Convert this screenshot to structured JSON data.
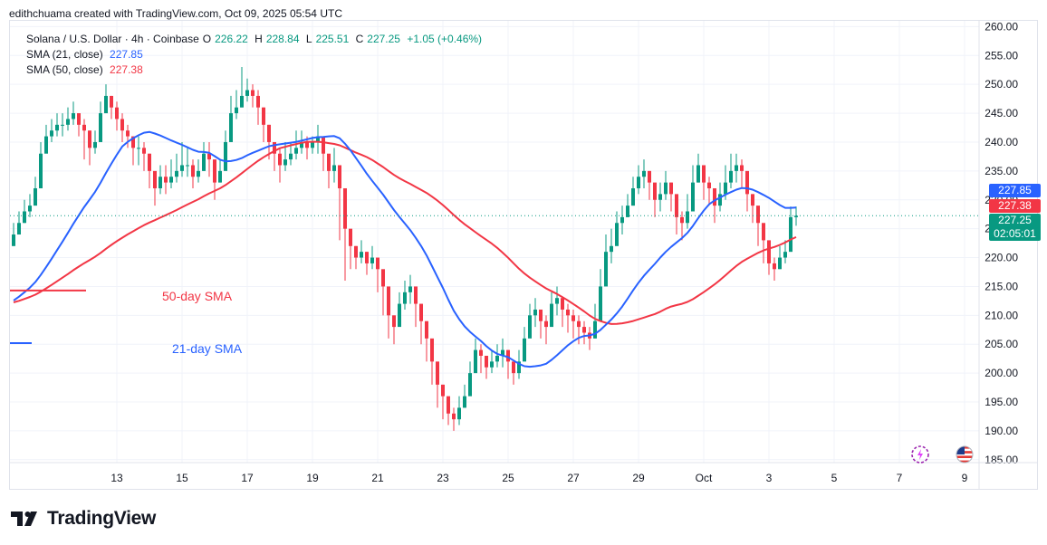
{
  "byline": "edithchuama created with TradingView.com, Oct 09, 2025 05:54 UTC",
  "legend": {
    "symbol": "Solana / U.S. Dollar · 4h · Coinbase",
    "o_label": "O",
    "o_value": "226.22",
    "h_label": "H",
    "h_value": "228.84",
    "l_label": "L",
    "l_value": "225.51",
    "c_label": "C",
    "c_value": "227.25",
    "change": "+1.05 (+0.46%)",
    "sma21_label": "SMA (21, close)",
    "sma21_value": "227.85",
    "sma50_label": "SMA (50, close)",
    "sma50_value": "227.38"
  },
  "annotations": {
    "sma50": "50-day SMA",
    "sma21": "21-day SMA"
  },
  "price_tags": {
    "sma21": "227.85",
    "sma50": "227.38",
    "last": "227.25",
    "countdown": "02:05:01"
  },
  "brand": "TradingView",
  "icons": {
    "logo": "tradingview-logo-icon",
    "replay": "replay-icon",
    "flag": "us-flag-icon"
  },
  "colors": {
    "up": "#089981",
    "down": "#f23645",
    "sma21": "#2962ff",
    "sma50": "#f23645",
    "grid": "#f0f3fa"
  },
  "chart_data": {
    "type": "candlestick",
    "timeframe": "4h",
    "y_ticks": [
      "260.00",
      "255.00",
      "250.00",
      "245.00",
      "240.00",
      "235.00",
      "230.00",
      "225.00",
      "220.00",
      "215.00",
      "210.00",
      "205.00",
      "200.00",
      "195.00",
      "190.00",
      "185.00"
    ],
    "ylim": [
      184.5,
      261
    ],
    "x_ticks": [
      {
        "label": "13",
        "bar": 19
      },
      {
        "label": "15",
        "bar": 31
      },
      {
        "label": "17",
        "bar": 43
      },
      {
        "label": "19",
        "bar": 55
      },
      {
        "label": "21",
        "bar": 67
      },
      {
        "label": "23",
        "bar": 79
      },
      {
        "label": "25",
        "bar": 91
      },
      {
        "label": "27",
        "bar": 103
      },
      {
        "label": "29",
        "bar": 115
      },
      {
        "label": "Oct",
        "bar": 127
      },
      {
        "label": "3",
        "bar": 139
      },
      {
        "label": "5",
        "bar": 151
      },
      {
        "label": "7",
        "bar": 163
      },
      {
        "label": "9",
        "bar": 175
      }
    ],
    "closes": [
      224,
      226,
      228,
      229,
      232,
      238,
      241,
      242,
      243,
      243,
      244,
      245,
      243,
      242,
      239,
      240,
      245,
      248,
      246,
      244,
      242,
      241,
      239,
      239,
      238,
      235,
      232,
      234,
      233,
      234,
      235,
      236,
      236,
      234,
      235,
      238,
      237,
      233,
      235,
      240,
      245,
      246,
      248,
      249,
      248,
      246,
      243,
      240,
      238,
      236,
      237,
      238,
      239,
      240,
      239,
      240,
      241,
      238,
      235,
      236,
      232,
      225,
      222,
      220,
      221,
      219,
      220,
      218,
      215,
      210,
      208,
      212,
      214,
      215,
      212,
      209,
      206,
      202,
      198,
      196,
      193,
      192,
      194,
      196,
      200,
      204,
      203,
      201,
      202,
      203,
      204,
      202,
      200,
      202,
      206,
      210,
      211,
      209,
      208,
      212,
      213,
      211,
      210,
      209,
      208,
      207,
      206,
      209,
      215,
      221,
      222,
      226,
      227,
      229,
      232,
      234,
      235,
      233,
      230,
      231,
      233,
      231,
      227,
      226,
      228,
      233,
      236,
      233,
      232,
      229,
      231,
      233,
      235,
      236,
      235,
      231,
      229,
      226,
      223,
      219,
      218,
      220,
      221,
      227,
      227.25
    ],
    "highs": [
      226,
      228,
      230,
      231,
      234,
      240,
      243,
      244,
      245,
      245,
      246,
      247,
      245,
      244,
      242,
      242,
      247,
      250,
      248,
      247,
      245,
      243,
      241,
      241,
      240,
      238,
      234,
      236,
      236,
      237,
      238,
      240,
      239,
      237,
      237,
      240,
      240,
      236,
      237,
      242,
      248,
      249,
      253,
      251,
      250,
      249,
      246,
      243,
      240,
      239,
      240,
      240,
      242,
      242,
      241,
      241,
      243,
      240,
      237,
      239,
      235,
      228,
      224,
      222,
      223,
      221,
      222,
      220,
      217,
      212,
      210,
      214,
      216,
      217,
      214,
      212,
      208,
      204,
      200,
      198,
      195,
      194,
      196,
      198,
      202,
      206,
      205,
      203,
      204,
      205,
      206,
      204,
      202,
      204,
      208,
      212,
      213,
      211,
      210,
      214,
      215,
      213,
      212,
      211,
      210,
      209,
      208,
      212,
      218,
      224,
      225,
      228,
      229,
      231,
      234,
      236,
      237,
      235,
      232,
      233,
      235,
      233,
      229,
      228,
      231,
      236,
      238,
      235,
      234,
      231,
      233,
      236,
      238,
      238,
      237,
      233,
      231,
      228,
      225,
      221,
      220,
      222,
      223,
      228.84,
      228.84
    ],
    "lows": [
      222,
      224,
      226,
      227,
      230,
      236,
      239,
      240,
      241,
      241,
      242,
      243,
      241,
      237,
      236,
      238,
      243,
      246,
      244,
      242,
      240,
      239,
      236,
      236,
      235,
      232,
      229,
      231,
      231,
      232,
      233,
      234,
      234,
      232,
      233,
      235,
      234,
      230,
      233,
      238,
      243,
      244,
      246,
      247,
      246,
      243,
      240,
      237,
      235,
      233,
      235,
      236,
      237,
      238,
      237,
      238,
      238,
      235,
      232,
      233,
      223,
      216,
      218,
      218,
      219,
      217,
      218,
      214,
      210,
      206,
      205,
      209,
      211,
      212,
      208,
      205,
      202,
      198,
      194,
      192,
      191,
      190,
      191,
      194,
      197,
      201,
      200,
      199,
      200,
      201,
      201,
      199,
      198,
      199,
      203,
      207,
      208,
      206,
      205,
      209,
      210,
      208,
      207,
      206,
      205,
      205,
      204,
      206,
      212,
      218,
      219,
      223,
      224,
      227,
      229,
      231,
      232,
      230,
      227,
      228,
      230,
      228,
      224,
      223,
      225,
      230,
      233,
      230,
      229,
      226,
      228,
      230,
      232,
      233,
      232,
      228,
      226,
      222,
      219,
      217,
      216,
      218,
      219,
      224,
      225.51
    ]
  }
}
